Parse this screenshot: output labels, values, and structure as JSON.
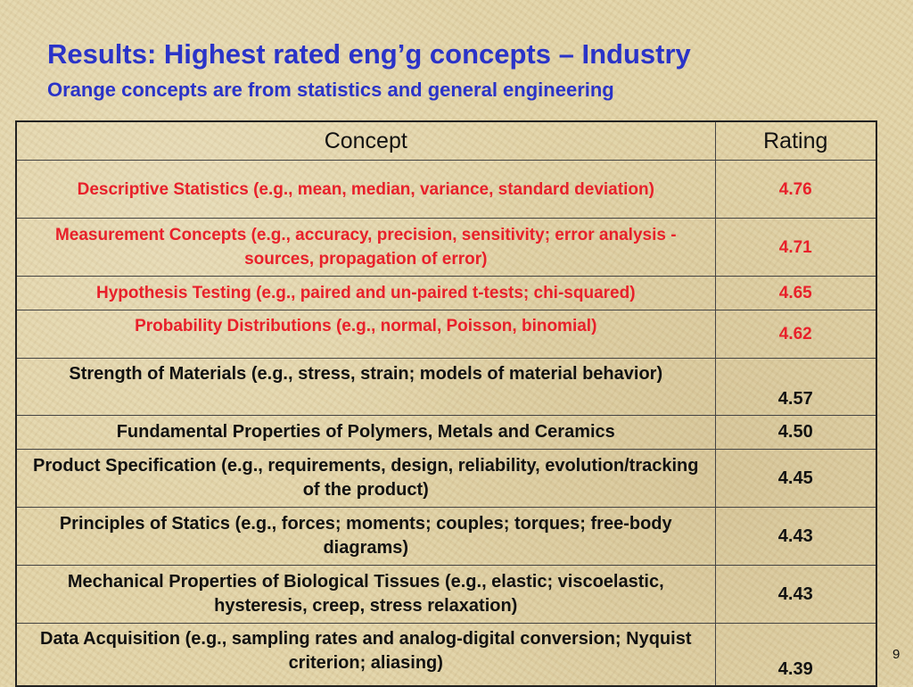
{
  "title": "Results: Highest rated eng’g concepts – Industry",
  "subtitle": "Orange concepts are from statistics and general engineering",
  "table": {
    "headers": [
      "Concept",
      "Rating"
    ],
    "rows": [
      {
        "concept": "Descriptive Statistics (e.g., mean, median, variance, standard deviation)",
        "rating": "4.76",
        "highlight": true
      },
      {
        "concept": "Measurement Concepts (e.g., accuracy, precision, sensitivity; error analysis - sources, propagation of error)",
        "rating": "4.71",
        "highlight": true
      },
      {
        "concept": "Hypothesis Testing (e.g., paired and un-paired t-tests; chi-squared)",
        "rating": "4.65",
        "highlight": true
      },
      {
        "concept": "Probability Distributions (e.g., normal, Poisson, binomial)",
        "rating": "4.62",
        "highlight": true
      },
      {
        "concept": "Strength of Materials (e.g., stress, strain; models of material behavior)",
        "rating": "4.57",
        "highlight": false
      },
      {
        "concept": "Fundamental Properties of Polymers, Metals and Ceramics",
        "rating": "4.50",
        "highlight": false
      },
      {
        "concept": "Product Specification (e.g., requirements, design, reliability, evolution/tracking of the product)",
        "rating": "4.45",
        "highlight": false
      },
      {
        "concept": "Principles of Statics (e.g., forces; moments; couples; torques; free-body diagrams)",
        "rating": "4.43",
        "highlight": false
      },
      {
        "concept": "Mechanical Properties of Biological Tissues (e.g., elastic; viscoelastic, hysteresis, creep, stress relaxation)",
        "rating": "4.43",
        "highlight": false
      },
      {
        "concept": "Data Acquisition (e.g., sampling rates and analog-digital conversion; Nyquist criterion; aliasing)",
        "rating": "4.39",
        "highlight": false
      }
    ]
  },
  "page_number": "9",
  "colors": {
    "title": "#2a33c8",
    "highlight": "#e8202a",
    "text": "#111111"
  }
}
